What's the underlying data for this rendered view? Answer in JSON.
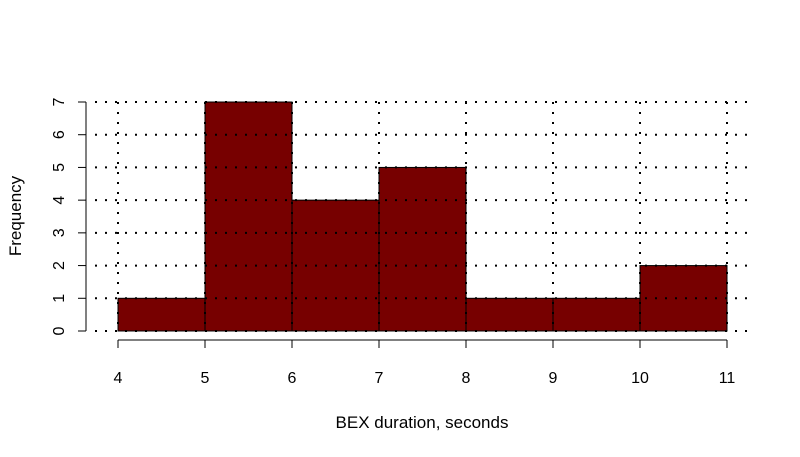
{
  "chart_data": {
    "type": "bar",
    "title": "",
    "xlabel": "BEX duration, seconds",
    "ylabel": "Frequency",
    "bins": [
      {
        "from": 4,
        "to": 5,
        "count": 1
      },
      {
        "from": 5,
        "to": 6,
        "count": 7
      },
      {
        "from": 6,
        "to": 7,
        "count": 4
      },
      {
        "from": 7,
        "to": 8,
        "count": 5
      },
      {
        "from": 8,
        "to": 9,
        "count": 1
      },
      {
        "from": 9,
        "to": 10,
        "count": 1
      },
      {
        "from": 10,
        "to": 11,
        "count": 2
      }
    ],
    "xlim": [
      4,
      11
    ],
    "ylim": [
      0,
      7
    ],
    "xticks": [
      4,
      5,
      6,
      7,
      8,
      9,
      10,
      11
    ],
    "yticks": [
      0,
      1,
      2,
      3,
      4,
      5,
      6,
      7
    ],
    "grid": "dotted",
    "bar_color": "#770000",
    "legend": "none"
  }
}
